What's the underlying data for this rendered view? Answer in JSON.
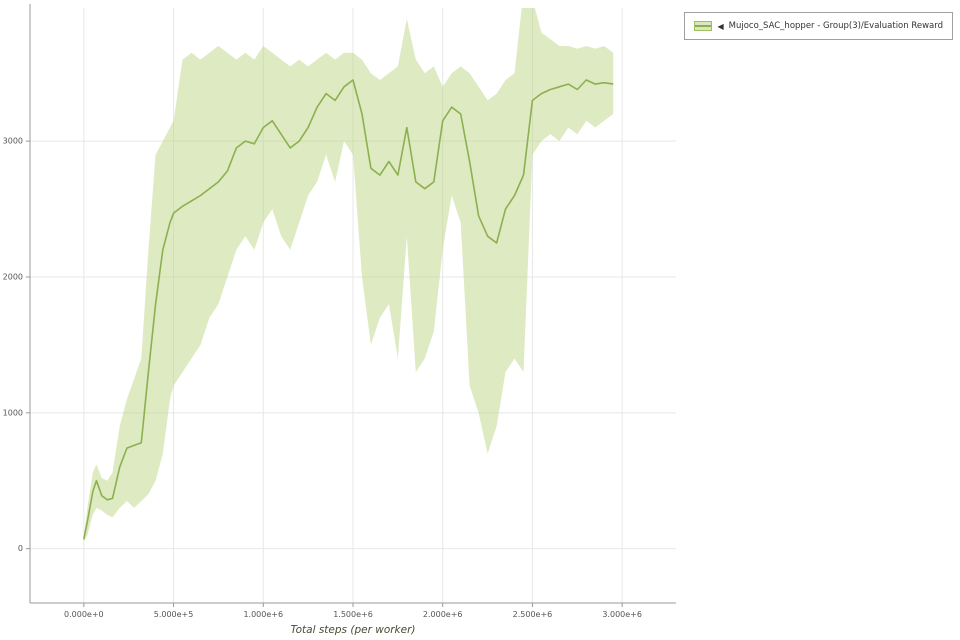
{
  "legend": {
    "toggle_icon": "◀",
    "label": "Mujoco_SAC_hopper - Group(3)/Evaluation Reward"
  },
  "colors": {
    "line": "#8cb04f",
    "band": "#b5d178",
    "band_opacity": 0.45,
    "grid": "#e7e7e7",
    "axis": "#999999",
    "tick_label": "#555555",
    "axis_title": "#4a4a33",
    "legend_border": "#a0a0a0",
    "swatch_fill": "#d9e7bb",
    "swatch_border": "#9fbf62"
  },
  "chart_data": {
    "type": "line",
    "title": "",
    "xlabel": "Total steps (per worker)",
    "ylabel": "",
    "grid": true,
    "legend_position": "top-right",
    "xlim": [
      -300000,
      3300000
    ],
    "ylim": [
      -400,
      3980
    ],
    "x_ticks": [
      {
        "label": "0.000e+0",
        "value": 0
      },
      {
        "label": "5.000e+5",
        "value": 500000
      },
      {
        "label": "1.000e+6",
        "value": 1000000
      },
      {
        "label": "1.500e+6",
        "value": 1500000
      },
      {
        "label": "2.000e+6",
        "value": 2000000
      },
      {
        "label": "2.500e+6",
        "value": 2500000
      },
      {
        "label": "3.000e+6",
        "value": 3000000
      }
    ],
    "y_ticks": [
      {
        "label": "0",
        "value": 0
      },
      {
        "label": "1000",
        "value": 1000
      },
      {
        "label": "2000",
        "value": 2000
      },
      {
        "label": "3000",
        "value": 3000
      }
    ],
    "series": [
      {
        "name": "Mujoco_SAC_hopper - Group(3)/Evaluation Reward",
        "x": [
          0,
          20000,
          50000,
          70000,
          100000,
          130000,
          160000,
          200000,
          240000,
          280000,
          320000,
          360000,
          400000,
          440000,
          480000,
          500000,
          550000,
          600000,
          650000,
          700000,
          750000,
          800000,
          850000,
          900000,
          950000,
          1000000,
          1050000,
          1100000,
          1150000,
          1200000,
          1250000,
          1300000,
          1350000,
          1400000,
          1450000,
          1500000,
          1550000,
          1600000,
          1650000,
          1700000,
          1750000,
          1800000,
          1850000,
          1900000,
          1950000,
          2000000,
          2050000,
          2100000,
          2150000,
          2200000,
          2250000,
          2300000,
          2350000,
          2400000,
          2450000,
          2500000,
          2550000,
          2600000,
          2650000,
          2700000,
          2750000,
          2800000,
          2850000,
          2900000,
          2950000
        ],
        "mean": [
          70,
          200,
          420,
          500,
          390,
          360,
          370,
          600,
          740,
          760,
          780,
          1300,
          1800,
          2200,
          2400,
          2470,
          2520,
          2560,
          2600,
          2650,
          2700,
          2780,
          2950,
          3000,
          2980,
          3100,
          3150,
          3050,
          2950,
          3000,
          3100,
          3250,
          3350,
          3300,
          3400,
          3450,
          3200,
          2800,
          2750,
          2850,
          2750,
          3100,
          2700,
          2650,
          2700,
          3150,
          3250,
          3200,
          2850,
          2450,
          2300,
          2250,
          2500,
          2600,
          2750,
          3300,
          3350,
          3380,
          3400,
          3420,
          3380,
          3450,
          3420,
          3430,
          3420
        ],
        "band_lower": [
          50,
          100,
          250,
          300,
          280,
          250,
          230,
          300,
          350,
          300,
          350,
          400,
          500,
          700,
          1100,
          1200,
          1300,
          1400,
          1500,
          1700,
          1800,
          2000,
          2200,
          2300,
          2200,
          2400,
          2500,
          2300,
          2200,
          2400,
          2600,
          2700,
          2900,
          2700,
          3000,
          2900,
          2000,
          1500,
          1700,
          1800,
          1400,
          2300,
          1300,
          1400,
          1600,
          2200,
          2600,
          2400,
          1200,
          1000,
          700,
          900,
          1300,
          1400,
          1300,
          2900,
          3000,
          3050,
          3000,
          3100,
          3050,
          3150,
          3100,
          3150,
          3200
        ],
        "band_upper": [
          100,
          300,
          560,
          620,
          520,
          500,
          560,
          900,
          1100,
          1250,
          1400,
          2200,
          2900,
          3000,
          3100,
          3150,
          3600,
          3650,
          3600,
          3650,
          3700,
          3650,
          3600,
          3650,
          3600,
          3700,
          3650,
          3600,
          3550,
          3600,
          3550,
          3600,
          3650,
          3600,
          3650,
          3650,
          3600,
          3500,
          3450,
          3500,
          3550,
          3900,
          3600,
          3500,
          3550,
          3400,
          3500,
          3550,
          3500,
          3400,
          3300,
          3350,
          3450,
          3500,
          4100,
          4050,
          3800,
          3750,
          3700,
          3700,
          3680,
          3700,
          3680,
          3700,
          3650
        ]
      }
    ]
  }
}
